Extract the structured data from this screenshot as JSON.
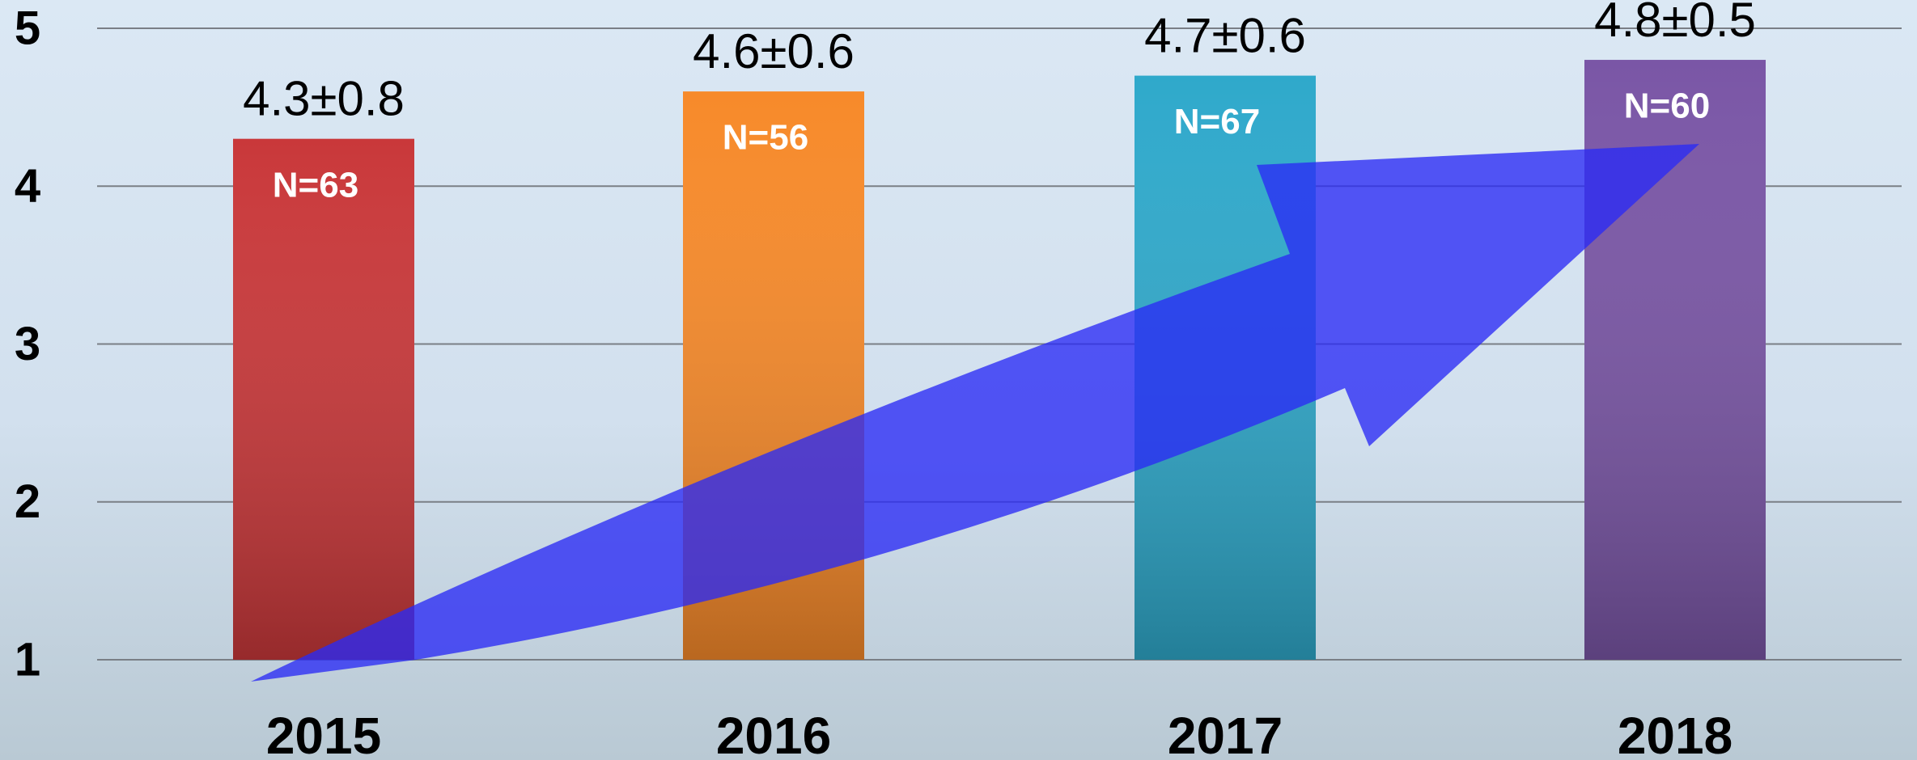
{
  "chart_data": {
    "type": "bar",
    "categories": [
      "2015",
      "2016",
      "2017",
      "2018"
    ],
    "values": [
      4.3,
      4.6,
      4.7,
      4.8
    ],
    "value_labels": [
      "4.3±0.8",
      "4.6±0.6",
      "4.7±0.6",
      "4.8±0.5"
    ],
    "annotations": [
      "N=63",
      "N=56",
      "N=67",
      "N=60"
    ],
    "colors": [
      "#c9383a",
      "#f78a2a",
      "#2fa9cb",
      "#7a56a6"
    ],
    "ylim": [
      1,
      5
    ],
    "yticks": [
      1,
      2,
      3,
      4,
      5
    ],
    "grid": true
  }
}
